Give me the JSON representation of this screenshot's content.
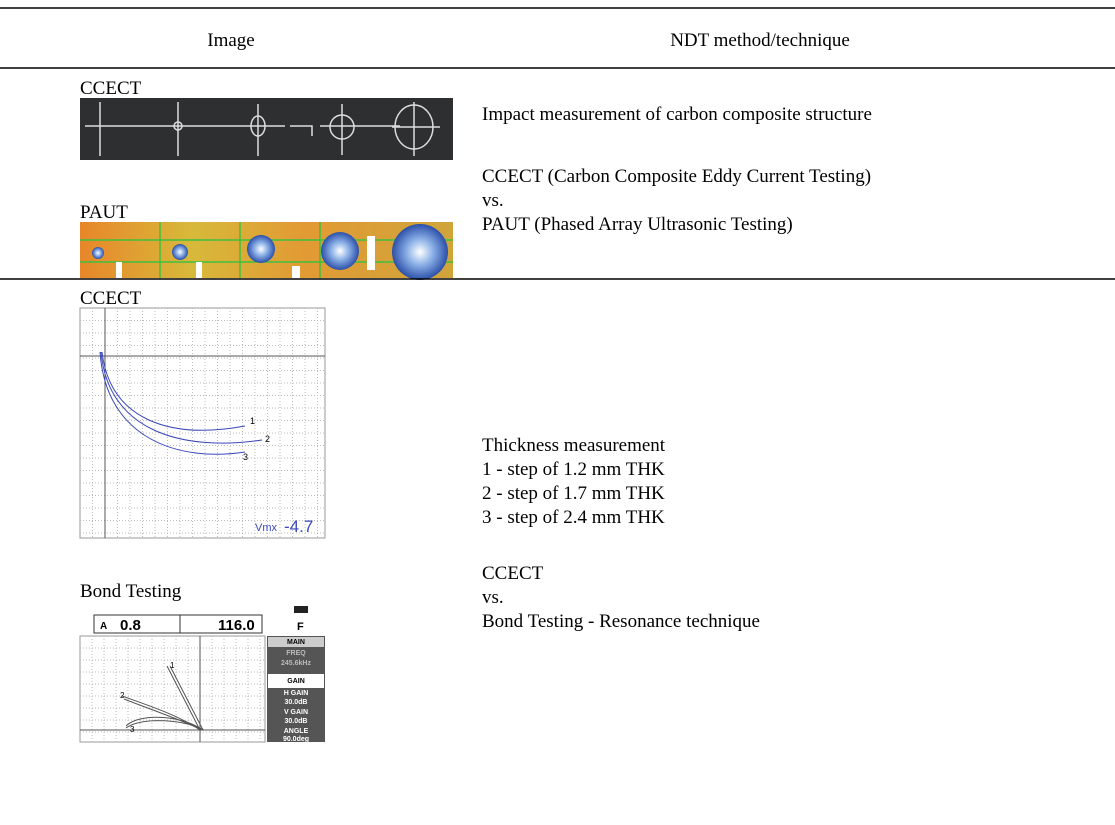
{
  "table": {
    "header": [
      "Image",
      "NDT method/technique"
    ],
    "rows": [
      {
        "images": [
          {
            "label": "CCECT"
          },
          {
            "label": "PAUT"
          }
        ],
        "description": [
          "Impact measurement of carbon composite structure",
          "CCECT (Carbon Composite Eddy Current Testing)",
          "vs.",
          "PAUT (Phased Array Ultrasonic Testing)"
        ]
      },
      {
        "images": [
          {
            "label": "CCECT",
            "curve_labels": [
              "1",
              "2",
              "3"
            ],
            "readout_label": "Vmx",
            "readout_value": "-4.7"
          },
          {
            "label": "Bond Testing",
            "readouts": [
              "A",
              "0.8",
              "116.0",
              "F"
            ],
            "curve_labels": [
              "1",
              "2",
              "3"
            ],
            "menu": [
              "MAIN",
              "FREQ",
              "245.6kHz",
              "GAIN",
              "H GAIN",
              "30.0dB",
              "V GAIN",
              "30.0dB",
              "ANGLE",
              "90.0deg"
            ]
          }
        ],
        "description": [
          "Thickness measurement",
          "1 - step of 1.2 mm THK",
          "2 - step of 1.7 mm THK",
          "3 - step of 2.4 mm THK",
          "CCECT",
          "vs.",
          "Bond Testing - Resonance technique"
        ]
      }
    ]
  }
}
